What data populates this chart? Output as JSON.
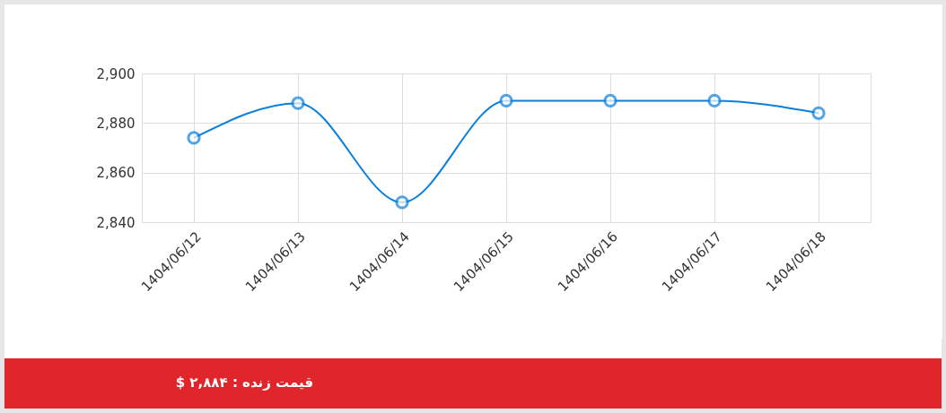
{
  "chart_data": {
    "type": "line",
    "categories": [
      "1404/06/12",
      "1404/06/13",
      "1404/06/14",
      "1404/06/15",
      "1404/06/16",
      "1404/06/17",
      "1404/06/18"
    ],
    "series": [
      {
        "color": "#0a7fdc",
        "values": [
          2874,
          2888,
          2848,
          2889,
          2889,
          2889,
          2884
        ]
      }
    ],
    "ylim": [
      2840,
      2900
    ],
    "yticks": [
      {
        "value": 2840,
        "label": "2,840"
      },
      {
        "value": 2860,
        "label": "2,860"
      },
      {
        "value": 2880,
        "label": "2,880"
      },
      {
        "value": 2900,
        "label": "2,900"
      }
    ],
    "grid": true,
    "marker": "circle",
    "line_style": "solid",
    "legend": false,
    "annotations": [
      "قیمت زنده : ۲,۸۸۴ $"
    ]
  }
}
